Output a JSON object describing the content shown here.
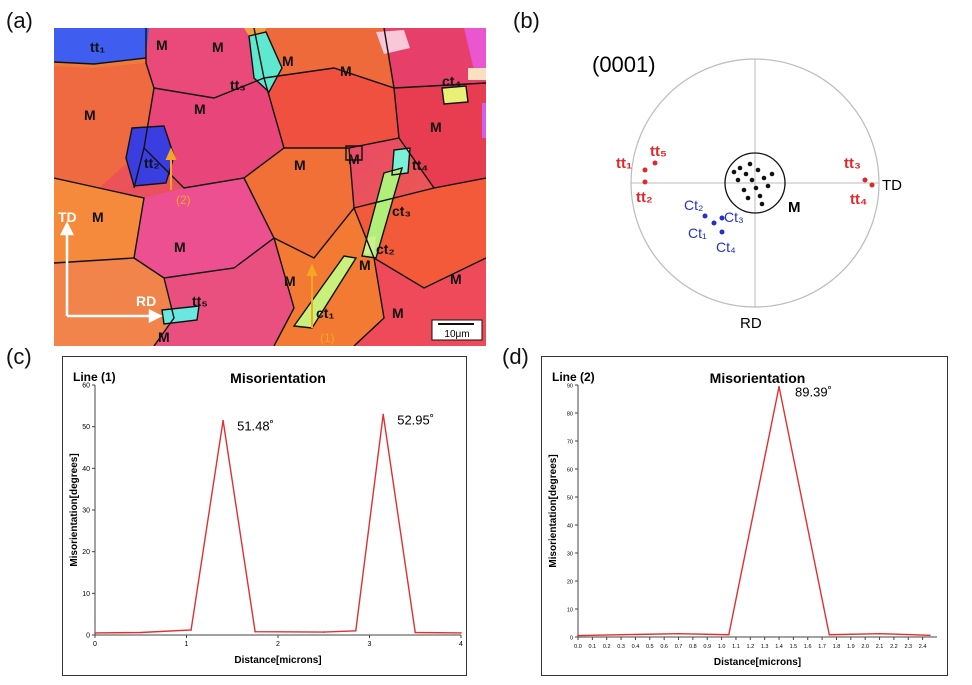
{
  "panels": {
    "a": "(a)",
    "b": "(b)",
    "c": "(c)",
    "d": "(d)"
  },
  "map": {
    "labels": {
      "tt1": "tt₁",
      "tt2": "tt₂",
      "tt3": "tt₃",
      "tt4": "tt₄",
      "tt5": "tt₅",
      "ct1": "ct₁",
      "ct2": "ct₂",
      "ct3": "ct₃",
      "ct4": "ct₄",
      "m": "M"
    },
    "line1": "(1)",
    "line2": "(2)",
    "td": "TD",
    "rd": "RD",
    "scale": "10μm",
    "colors": {
      "orange": "#f07a3a",
      "magenta": "#e8457a",
      "blue": "#3d4fe0",
      "cyan": "#5fe8d0",
      "green": "#c8f07a",
      "arrow": "#f5a623"
    }
  },
  "pole_figure": {
    "title": "(0001)",
    "td": "TD",
    "rd": "RD",
    "m": "M",
    "tt_labels": [
      "tt₁",
      "tt₅",
      "tt₂",
      "tt₃",
      "tt₄"
    ],
    "ct_labels": [
      "Ct₂",
      "Ct₃",
      "Ct₁",
      "Ct₄"
    ],
    "tt_color": "#e0282a",
    "ct_color": "#2430c8"
  },
  "chart_data": [
    {
      "type": "line",
      "title": "Misorientation",
      "line_label": "Line (1)",
      "xlabel": "Distance[microns]",
      "ylabel": "Misorientation[degrees]",
      "xlim": [
        0,
        4
      ],
      "ylim": [
        0,
        60
      ],
      "xticks": [
        "0",
        "1",
        "2",
        "3",
        "4"
      ],
      "yticks": [
        "0",
        "10",
        "20",
        "30",
        "40",
        "50",
        "60"
      ],
      "x": [
        0,
        0.5,
        1.05,
        1.4,
        1.75,
        2.5,
        2.85,
        3.15,
        3.5,
        4.0
      ],
      "y": [
        0.5,
        0.6,
        1.2,
        51.48,
        0.8,
        0.7,
        1.0,
        52.95,
        0.6,
        0.5
      ],
      "annotations": [
        "51.48˚",
        "52.95˚"
      ],
      "line_color": "#e03030"
    },
    {
      "type": "line",
      "title": "Misorientation",
      "line_label": "Line (2)",
      "xlabel": "Distance[microns]",
      "ylabel": "Misorientation[degrees]",
      "xlim": [
        0,
        2.5
      ],
      "ylim": [
        0,
        90
      ],
      "xticks": [
        "0.0",
        "0.1",
        "0.2",
        "0.3",
        "0.4",
        "0.5",
        "0.6",
        "0.7",
        "0.8",
        "0.9",
        "1.0",
        "1.1",
        "1.2",
        "1.3",
        "1.4",
        "1.5",
        "1.6",
        "1.7",
        "1.8",
        "1.9",
        "2.0",
        "2.1",
        "2.2",
        "2.3",
        "2.4"
      ],
      "yticks": [
        "0",
        "10",
        "20",
        "30",
        "40",
        "50",
        "60",
        "70",
        "80",
        "90"
      ],
      "x": [
        0,
        0.7,
        1.05,
        1.4,
        1.75,
        2.1,
        2.45
      ],
      "y": [
        0.5,
        1.2,
        0.8,
        89.39,
        0.8,
        1.2,
        0.6
      ],
      "annotations": [
        "89.39˚"
      ],
      "line_color": "#e03030"
    }
  ]
}
